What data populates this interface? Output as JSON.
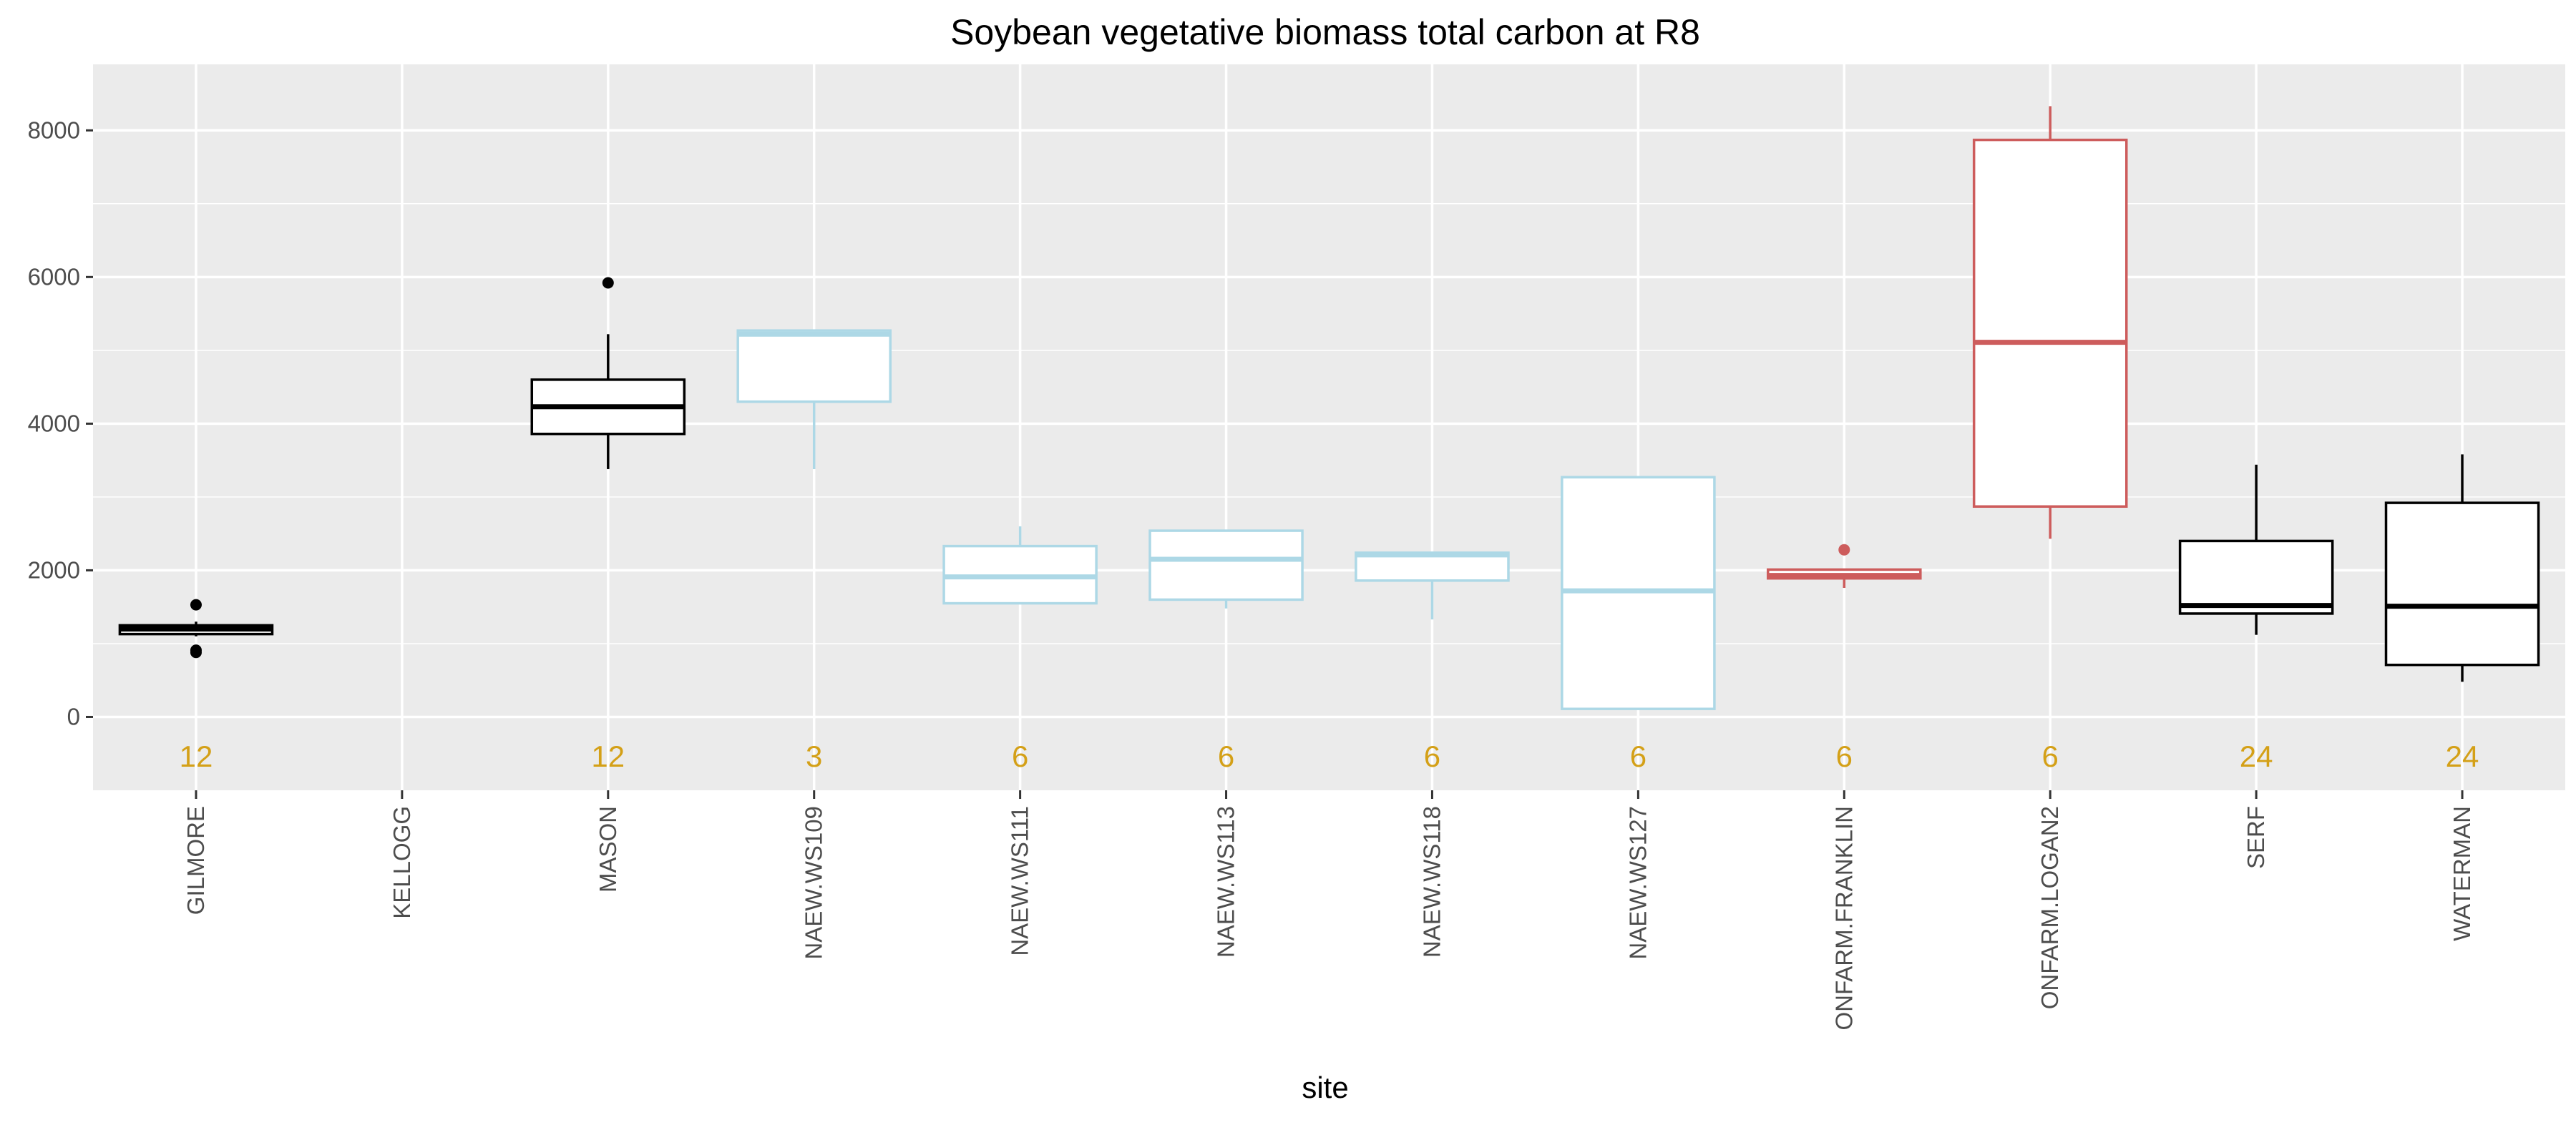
{
  "chart_data": {
    "type": "boxplot",
    "title": "Soybean vegetative biomass total carbon at R8",
    "xlabel": "site",
    "ylabel": "",
    "ylim": [
      -1000,
      8900
    ],
    "yticks": [
      0,
      2000,
      4000,
      6000,
      8000
    ],
    "grid": true,
    "colors": {
      "panel_background": "#ebebeb",
      "grid": "#ffffff",
      "count_label": "#d4a017",
      "box_fill": "#ffffff"
    },
    "categories": [
      "GILMORE",
      "KELLOGG",
      "MASON",
      "NAEW.WS109",
      "NAEW.WS111",
      "NAEW.WS113",
      "NAEW.WS118",
      "NAEW.WS127",
      "ONFARM.FRANKLIN",
      "ONFARM.LOGAN2",
      "SERF",
      "WATERMAN"
    ],
    "boxes": [
      {
        "site": "GILMORE",
        "color": "#000000",
        "whisker_low": 1100,
        "q1": 1130,
        "median": 1200,
        "q3": 1250,
        "whisker_high": 1300,
        "outliers": [
          1530,
          880,
          910
        ],
        "n": "12"
      },
      {
        "site": "KELLOGG",
        "color": "#000000",
        "empty": true,
        "n": ""
      },
      {
        "site": "MASON",
        "color": "#000000",
        "whisker_low": 3380,
        "q1": 3860,
        "median": 4230,
        "q3": 4600,
        "whisker_high": 5220,
        "outliers": [
          5920
        ],
        "n": "12"
      },
      {
        "site": "NAEW.WS109",
        "color": "#add8e6",
        "whisker_low": 3380,
        "q1": 4300,
        "median": 5220,
        "q3": 5270,
        "whisker_high": 5270,
        "outliers": [],
        "n": "3"
      },
      {
        "site": "NAEW.WS111",
        "color": "#add8e6",
        "whisker_low": 1550,
        "q1": 1550,
        "median": 1910,
        "q3": 2330,
        "whisker_high": 2600,
        "outliers": [],
        "n": "6"
      },
      {
        "site": "NAEW.WS113",
        "color": "#add8e6",
        "whisker_low": 1480,
        "q1": 1600,
        "median": 2150,
        "q3": 2540,
        "whisker_high": 2540,
        "outliers": [],
        "n": "6"
      },
      {
        "site": "NAEW.WS118",
        "color": "#add8e6",
        "whisker_low": 1330,
        "q1": 1860,
        "median": 2210,
        "q3": 2240,
        "whisker_high": 2240,
        "outliers": [],
        "n": "6"
      },
      {
        "site": "NAEW.WS127",
        "color": "#add8e6",
        "whisker_low": 110,
        "q1": 110,
        "median": 1720,
        "q3": 3270,
        "whisker_high": 3270,
        "outliers": [],
        "n": "6"
      },
      {
        "site": "ONFARM.FRANKLIN",
        "color": "#cd5c5c",
        "whisker_low": 1760,
        "q1": 1890,
        "median": 1930,
        "q3": 2010,
        "whisker_high": 2010,
        "outliers": [
          2280
        ],
        "n": "6"
      },
      {
        "site": "ONFARM.LOGAN2",
        "color": "#cd5c5c",
        "whisker_low": 2430,
        "q1": 2870,
        "median": 5110,
        "q3": 7870,
        "whisker_high": 8330,
        "outliers": [],
        "n": "6"
      },
      {
        "site": "SERF",
        "color": "#000000",
        "whisker_low": 1120,
        "q1": 1410,
        "median": 1520,
        "q3": 2400,
        "whisker_high": 3440,
        "outliers": [],
        "n": "24"
      },
      {
        "site": "WATERMAN",
        "color": "#000000",
        "whisker_low": 480,
        "q1": 710,
        "median": 1510,
        "q3": 2920,
        "whisker_high": 3580,
        "outliers": [],
        "n": "24"
      }
    ],
    "count_label_y": -530
  }
}
